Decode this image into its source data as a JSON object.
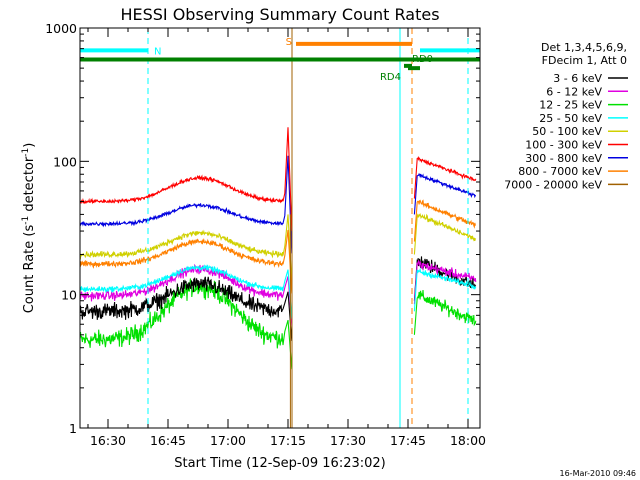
{
  "chart_data": {
    "type": "line",
    "title": "HESSI Observing Summary Count Rates",
    "xlabel": "Start Time (12-Sep-09 16:23:02)",
    "ylabel_main": "Count Rate (s",
    "ylabel_sup1": "-1",
    "ylabel_mid": " detector",
    "ylabel_sup2": "-1",
    "ylabel_end": ")",
    "yscale": "log",
    "ylim": [
      1,
      1000
    ],
    "xlim": [
      "16:23",
      "18:03"
    ],
    "x_ticks": [
      "16:30",
      "16:45",
      "17:00",
      "17:15",
      "17:30",
      "17:45",
      "18:00"
    ],
    "y_ticks": [
      "1",
      "10",
      "100",
      "1000"
    ],
    "footer": "16-Mar-2010 09:46",
    "legend": {
      "header1": "Det 1,3,4,5,6,9,",
      "header2": "FDecim 1, Att 0"
    },
    "series": [
      {
        "name": "3 - 6 keV",
        "color": "#000000",
        "seg1": {
          "base": 7.5,
          "peak": 12,
          "center": "16:53",
          "width_min": 10,
          "noise": 0.09
        },
        "seg2": {
          "start": 18.0,
          "end": 11.5,
          "noise": 0.08
        }
      },
      {
        "name": "6 - 12 keV",
        "color": "#e000e0",
        "seg1": {
          "base": 9.8,
          "peak": 15.5,
          "center": "16:53",
          "width_min": 10,
          "noise": 0.05
        },
        "seg2": {
          "start": 17.0,
          "end": 13.0,
          "noise": 0.05
        }
      },
      {
        "name": "12 - 25 keV",
        "color": "#00e000",
        "seg1": {
          "base": 4.6,
          "peak": 11.5,
          "center": "16:53",
          "width_min": 10,
          "noise": 0.1
        },
        "seg2": {
          "start": 10.0,
          "end": 6.3,
          "noise": 0.07
        }
      },
      {
        "name": "25 - 50 keV",
        "color": "#00ffff",
        "seg1": {
          "base": 11.0,
          "peak": 16.0,
          "center": "16:53",
          "width_min": 10,
          "noise": 0.03
        },
        "seg2": {
          "start": 15.0,
          "end": 11.5,
          "noise": 0.03
        }
      },
      {
        "name": "50 - 100 keV",
        "color": "#d0d000",
        "seg1": {
          "base": 20.0,
          "peak": 29.0,
          "center": "16:53",
          "width_min": 10,
          "noise": 0.03
        },
        "seg2": {
          "start": 40.0,
          "end": 26.0,
          "noise": 0.03
        }
      },
      {
        "name": "100 - 300 keV",
        "color": "#ff0000",
        "seg1": {
          "base": 50.0,
          "peak": 75.0,
          "center": "16:53",
          "width_min": 10,
          "noise": 0.02
        },
        "seg2": {
          "start": 105.0,
          "end": 72.0,
          "noise": 0.02
        }
      },
      {
        "name": "300 - 800 keV",
        "color": "#0000e0",
        "seg1": {
          "base": 34.0,
          "peak": 47.0,
          "center": "16:53",
          "width_min": 10,
          "noise": 0.02
        },
        "seg2": {
          "start": 80.0,
          "end": 55.0,
          "noise": 0.02
        }
      },
      {
        "name": "800 - 7000 keV",
        "color": "#ff8000",
        "seg1": {
          "base": 17.0,
          "peak": 25.0,
          "center": "16:53",
          "width_min": 10,
          "noise": 0.03
        },
        "seg2": {
          "start": 50.0,
          "end": 33.0,
          "noise": 0.03
        }
      },
      {
        "name": "7000 - 20000 keV",
        "color": "#a06000",
        "seg1": null,
        "seg2": null
      }
    ],
    "data_gap": {
      "start": "17:16",
      "end": "17:46"
    },
    "flare_spike": {
      "time": "17:15",
      "peak_100_300": 180,
      "peak_300_800": 110
    },
    "state_bars": [
      {
        "label": "N",
        "color": "#00ffff",
        "y": 680,
        "from": "16:23",
        "to": "16:40"
      },
      {
        "label": "S",
        "color": "#ff8000",
        "y": 760,
        "from": "17:17",
        "to": "17:46"
      },
      {
        "label": "",
        "color": "#00ffff",
        "y": 680,
        "from": "17:48",
        "to": "18:03"
      },
      {
        "label": "",
        "color": "#008000",
        "y": 580,
        "from": "16:23",
        "to": "18:03"
      },
      {
        "label": "RD4",
        "color": "#008000",
        "y": 520,
        "from": "17:44",
        "to": "17:46"
      },
      {
        "label": "RD0",
        "color": "#008000",
        "y": 500,
        "from": "17:45",
        "to": "17:48"
      }
    ],
    "vlines": [
      {
        "time": "16:23",
        "color": "#00ffff",
        "dash": false
      },
      {
        "time": "16:40",
        "color": "#00ffff",
        "dash": true
      },
      {
        "time": "17:16",
        "color": "#a06000",
        "dash": false
      },
      {
        "time": "17:43",
        "color": "#00ffff",
        "dash": false
      },
      {
        "time": "17:46",
        "color": "#ff8000",
        "dash": true
      },
      {
        "time": "18:00",
        "color": "#00ffff",
        "dash": true
      }
    ],
    "grid": false
  }
}
